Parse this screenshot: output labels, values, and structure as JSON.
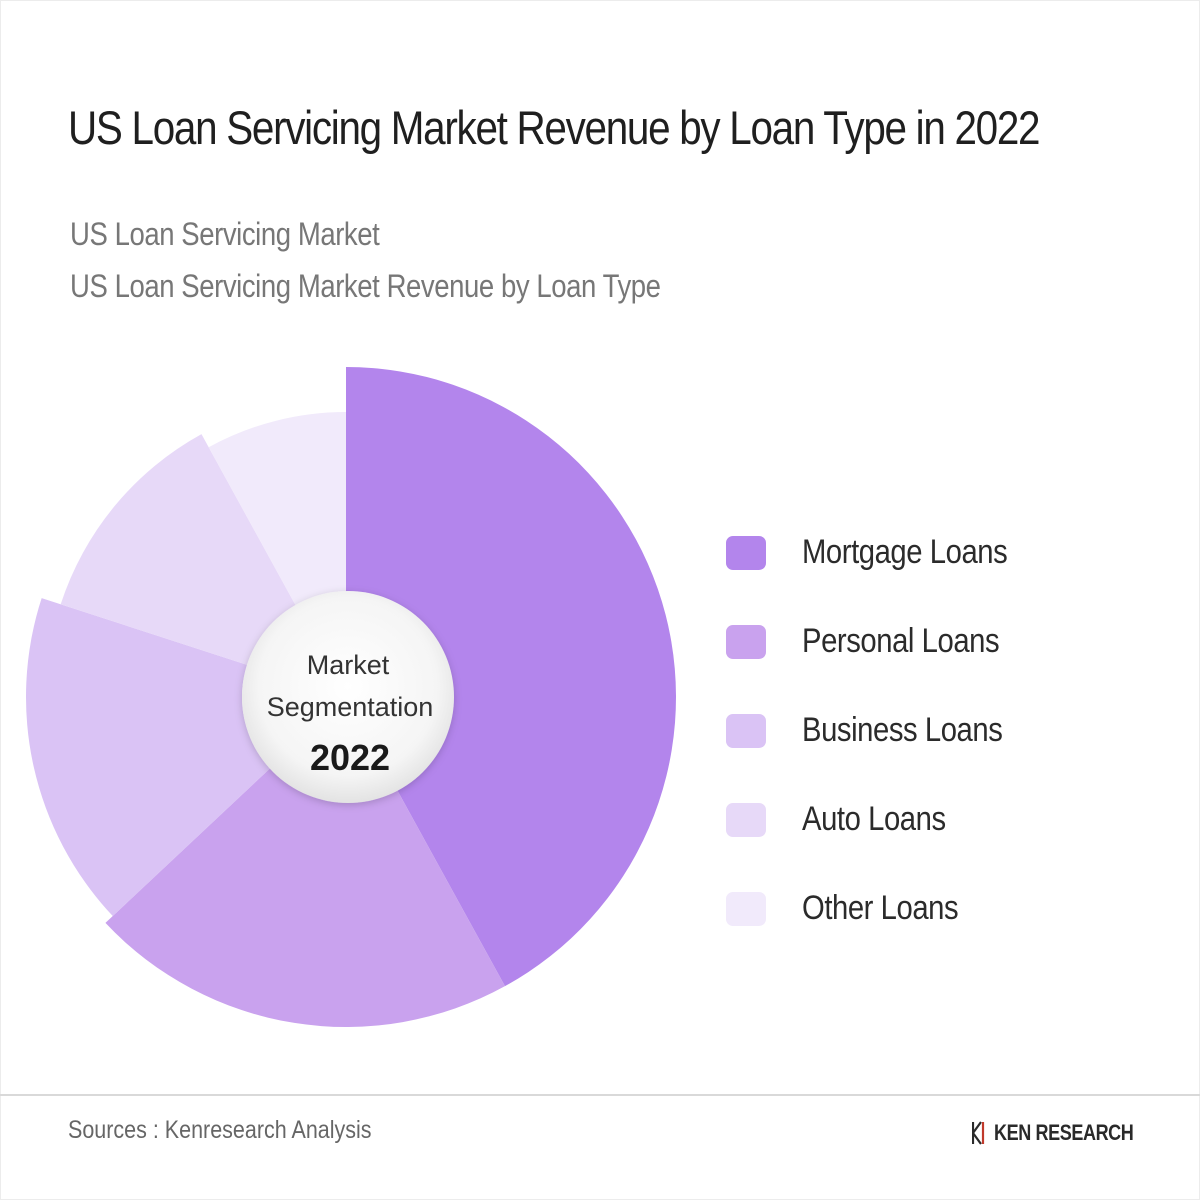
{
  "title": "US Loan Servicing Market Revenue by Loan Type in 2022",
  "subtitles": [
    "US Loan Servicing Market",
    "US Loan Servicing Market Revenue by Loan Type"
  ],
  "chart_data": {
    "type": "pie",
    "title": "US Loan Servicing Market Revenue by Loan Type in 2022",
    "center_label": {
      "line1": "Market",
      "line2": "Segmentation",
      "year": "2022"
    },
    "categories": [
      "Mortgage Loans",
      "Personal Loans",
      "Business Loans",
      "Auto Loans",
      "Other Loans"
    ],
    "values": [
      42,
      21,
      17,
      12,
      8
    ],
    "colors": [
      "#b385ec",
      "#c9a2ee",
      "#dac3f5",
      "#e7d9f8",
      "#f1eafb"
    ],
    "legend_position": "right"
  },
  "footer": {
    "source": "Sources : Kenresearch Analysis",
    "brand": "KEN RESEARCH"
  }
}
